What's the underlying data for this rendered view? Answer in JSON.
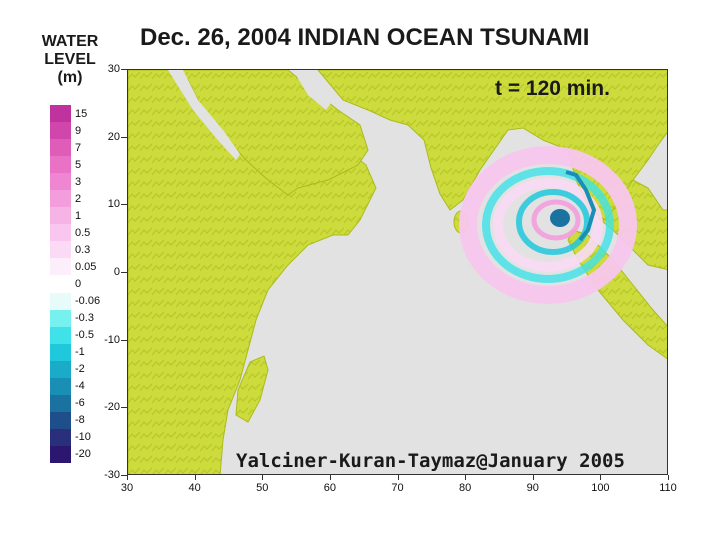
{
  "title": "Dec. 26, 2004 INDIAN OCEAN TSUNAMI",
  "legend": {
    "title_lines": [
      "WATER",
      "LEVEL",
      "(m)"
    ],
    "labels": [
      "15",
      "9",
      "7",
      "5",
      "3",
      "2",
      "1",
      "0.5",
      "0.3",
      "0.05",
      "0",
      "-0.06",
      "-0.3",
      "-0.5",
      "-1",
      "-2",
      "-4",
      "-6",
      "-8",
      "-10",
      "-20"
    ],
    "colors": [
      "#c0339e",
      "#d146aa",
      "#df5cb8",
      "#e971c6",
      "#ef86d2",
      "#f39ddd",
      "#f6b3e6",
      "#f8c6ee",
      "#fadaf5",
      "#fdeefb",
      "#ffffff",
      "#e8fbfb",
      "#77f0f0",
      "#3fe2e8",
      "#20c8dc",
      "#1aabc9",
      "#1a8fb6",
      "#1a72a0",
      "#1e4f8a",
      "#2a2f7c",
      "#2b1670"
    ]
  },
  "map": {
    "time_label": "t = 120 min.",
    "credit": "Yalciner-Kuran-Taymaz@January 2005",
    "x_ticks": [
      "30",
      "40",
      "50",
      "60",
      "70",
      "80",
      "90",
      "100",
      "110"
    ],
    "y_ticks": [
      "30",
      "20",
      "10",
      "0",
      "-10",
      "-20",
      "-30"
    ],
    "lon_range": [
      30,
      110
    ],
    "lat_range": [
      -30,
      30
    ],
    "colors": {
      "land": "#cddc3c",
      "land_dark": "#a8ba1e",
      "sea": "#e2e2e2"
    }
  }
}
